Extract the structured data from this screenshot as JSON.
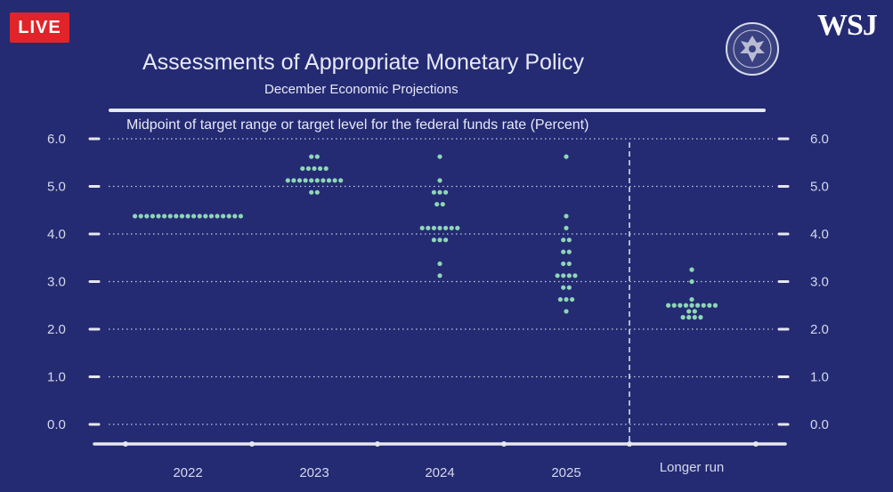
{
  "badge": {
    "live_label": "LIVE"
  },
  "brand": {
    "wsj_label": "WSJ"
  },
  "icons": {
    "seal": "federal-reserve-seal-icon"
  },
  "colors": {
    "background": "#242b73",
    "dots": "#8fd6b6",
    "axis": "#e6e7f0",
    "live": "#e0242a"
  },
  "chart_data": {
    "type": "scatter",
    "title": "Assessments of Appropriate Monetary Policy",
    "subtitle": "December Economic Projections",
    "ylabel": "Midpoint of target range or target level for the federal funds rate (Percent)",
    "xlabel": "",
    "categories": [
      "2022",
      "2023",
      "2024",
      "2025",
      "Longer run"
    ],
    "ylim": [
      0,
      6
    ],
    "yticks": [
      "0.0",
      "1.0",
      "2.0",
      "3.0",
      "4.0",
      "5.0",
      "6.0"
    ],
    "grid": true,
    "right_axis": true,
    "dots": [
      {
        "category": "2022",
        "levels": [
          {
            "y": 4.375,
            "count": 19
          }
        ]
      },
      {
        "category": "2023",
        "levels": [
          {
            "y": 5.625,
            "count": 2
          },
          {
            "y": 5.375,
            "count": 5
          },
          {
            "y": 5.125,
            "count": 10
          },
          {
            "y": 4.875,
            "count": 2
          }
        ]
      },
      {
        "category": "2024",
        "levels": [
          {
            "y": 5.625,
            "count": 1
          },
          {
            "y": 5.125,
            "count": 1
          },
          {
            "y": 4.875,
            "count": 3
          },
          {
            "y": 4.625,
            "count": 2
          },
          {
            "y": 4.125,
            "count": 7
          },
          {
            "y": 3.875,
            "count": 3
          },
          {
            "y": 3.375,
            "count": 1
          },
          {
            "y": 3.125,
            "count": 1
          }
        ]
      },
      {
        "category": "2025",
        "levels": [
          {
            "y": 5.625,
            "count": 1
          },
          {
            "y": 4.375,
            "count": 1
          },
          {
            "y": 4.125,
            "count": 1
          },
          {
            "y": 3.875,
            "count": 2
          },
          {
            "y": 3.625,
            "count": 2
          },
          {
            "y": 3.375,
            "count": 2
          },
          {
            "y": 3.125,
            "count": 4
          },
          {
            "y": 2.875,
            "count": 2
          },
          {
            "y": 2.625,
            "count": 3
          },
          {
            "y": 2.375,
            "count": 1
          }
        ]
      },
      {
        "category": "Longer run",
        "levels": [
          {
            "y": 3.25,
            "count": 1
          },
          {
            "y": 3.0,
            "count": 1
          },
          {
            "y": 2.625,
            "count": 1
          },
          {
            "y": 2.5,
            "count": 9
          },
          {
            "y": 2.375,
            "count": 2
          },
          {
            "y": 2.25,
            "count": 4
          }
        ]
      }
    ]
  }
}
